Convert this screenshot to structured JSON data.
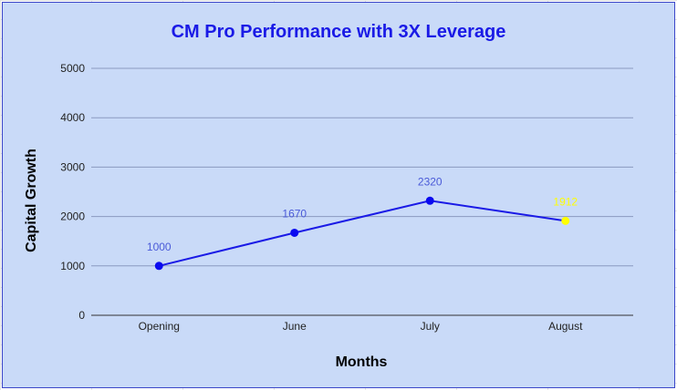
{
  "chart_data": {
    "type": "line",
    "title": "CM Pro Performance with 3X Leverage",
    "xlabel": "Months",
    "ylabel": "Capital Growth",
    "categories": [
      "Opening",
      "June",
      "July",
      "August"
    ],
    "series": [
      {
        "values": [
          1000,
          1670,
          2320,
          1912
        ],
        "labels": [
          "1000",
          "1670",
          "2320",
          "1912"
        ]
      }
    ],
    "ylim": [
      0,
      5000
    ],
    "yticks": [
      "0",
      "1000",
      "2000",
      "3000",
      "4000",
      "5000"
    ],
    "grid": true,
    "legend": "none"
  },
  "colors": {
    "background": "#c9daf8",
    "title": "#1a1ae6",
    "line": "#1a1ae6",
    "point": "#0a0af0",
    "label": "#4a5ad8",
    "highlight_point": "#ffff00",
    "gridline": "#8a99bf"
  }
}
